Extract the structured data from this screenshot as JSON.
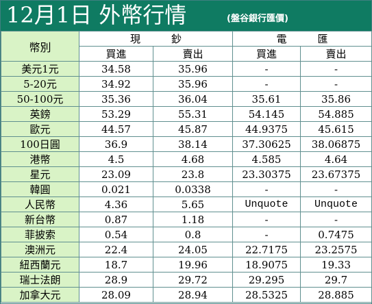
{
  "title": {
    "main": "12月1日 外幣行情",
    "sub": "(盤谷銀行匯價)"
  },
  "header": {
    "currency": "幣別",
    "cash": "現　　　鈔",
    "transfer": "電　　　匯",
    "buy": "買進",
    "sell": "賣出"
  },
  "rows": [
    {
      "name": "美元1元",
      "cash_buy": "34.58",
      "cash_sell": "35.96",
      "tt_buy": "-",
      "tt_sell": "-"
    },
    {
      "name": "5-20元",
      "cash_buy": "34.92",
      "cash_sell": "35.96",
      "tt_buy": "-",
      "tt_sell": "-"
    },
    {
      "name": "50-100元",
      "cash_buy": "35.36",
      "cash_sell": "36.04",
      "tt_buy": "35.61",
      "tt_sell": "35.86"
    },
    {
      "name": "英鎊",
      "cash_buy": "53.29",
      "cash_sell": "55.31",
      "tt_buy": "54.145",
      "tt_sell": "54.885"
    },
    {
      "name": "歐元",
      "cash_buy": "44.57",
      "cash_sell": "45.87",
      "tt_buy": "44.9375",
      "tt_sell": "45.615"
    },
    {
      "name": "100日圓",
      "cash_buy": "36.9",
      "cash_sell": "38.14",
      "tt_buy": "37.30625",
      "tt_sell": "38.06875"
    },
    {
      "name": "港幣",
      "cash_buy": "4.5",
      "cash_sell": "4.68",
      "tt_buy": "4.585",
      "tt_sell": "4.64"
    },
    {
      "name": "星元",
      "cash_buy": "23.09",
      "cash_sell": "23.8",
      "tt_buy": "23.30375",
      "tt_sell": "23.67375"
    },
    {
      "name": "韓圓",
      "cash_buy": "0.021",
      "cash_sell": "0.0338",
      "tt_buy": "-",
      "tt_sell": "-"
    },
    {
      "name": "人民幣",
      "cash_buy": "4.36",
      "cash_sell": "5.65",
      "tt_buy": "Unquote",
      "tt_sell": "Unquote"
    },
    {
      "name": "新台幣",
      "cash_buy": "0.87",
      "cash_sell": "1.18",
      "tt_buy": "-",
      "tt_sell": "-"
    },
    {
      "name": "菲披索",
      "cash_buy": "0.54",
      "cash_sell": "0.8",
      "tt_buy": "-",
      "tt_sell": "0.7475"
    },
    {
      "name": "澳洲元",
      "cash_buy": "22.4",
      "cash_sell": "24.05",
      "tt_buy": "22.7175",
      "tt_sell": "23.2575"
    },
    {
      "name": "紐西蘭元",
      "cash_buy": "18.7",
      "cash_sell": "19.96",
      "tt_buy": "18.9075",
      "tt_sell": "19.33"
    },
    {
      "name": "瑞士法朗",
      "cash_buy": "28.9",
      "cash_sell": "29.72",
      "tt_buy": "29.295",
      "tt_sell": "29.7"
    },
    {
      "name": "加拿大元",
      "cash_buy": "28.09",
      "cash_sell": "28.94",
      "tt_buy": "28.5325",
      "tt_sell": "28.885"
    }
  ],
  "colors": {
    "title_bg": "#0f7b62",
    "label_bg": "#d9f3c6"
  }
}
